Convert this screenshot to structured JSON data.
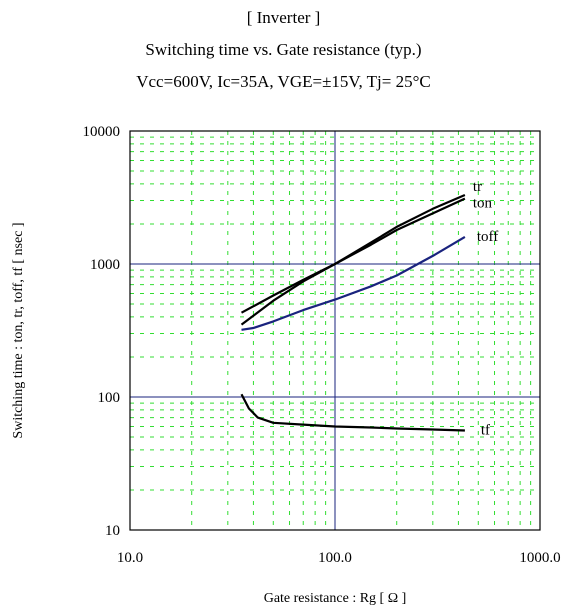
{
  "chart_data": {
    "type": "line",
    "title": "[ Inverter ]",
    "subtitle": "Switching time  vs.  Gate resistance  (typ.)",
    "conditions": "Vcc=600V, Ic=35A, VGE=±15V, Tj= 25°C",
    "xlabel": "Gate resistance  :  Rg  [ Ω ]",
    "ylabel": "Switching time  :  ton, tr, toff, tf  [ nsec ]",
    "xscale": "log",
    "yscale": "log",
    "xlim": [
      10,
      1000
    ],
    "ylim": [
      10,
      10000
    ],
    "xticks": [
      "10.0",
      "100.0",
      "1000.0"
    ],
    "yticks": [
      "10",
      "100",
      "1000",
      "10000"
    ],
    "grid": true,
    "series": [
      {
        "name": "tr",
        "color": "#000000",
        "x": [
          35,
          50,
          70,
          100,
          150,
          200,
          300,
          430
        ],
        "y": [
          350,
          530,
          740,
          1000,
          1450,
          1900,
          2600,
          3300
        ]
      },
      {
        "name": "ton",
        "color": "#000000",
        "x": [
          35,
          50,
          70,
          100,
          150,
          200,
          300,
          430
        ],
        "y": [
          430,
          580,
          760,
          1000,
          1400,
          1800,
          2400,
          3100
        ]
      },
      {
        "name": "toff",
        "color": "#1a237e",
        "x": [
          35,
          40,
          50,
          70,
          100,
          150,
          200,
          300,
          430
        ],
        "y": [
          320,
          330,
          370,
          450,
          540,
          680,
          820,
          1150,
          1600
        ]
      },
      {
        "name": "tf",
        "color": "#000000",
        "x": [
          35,
          38,
          42,
          50,
          70,
          100,
          150,
          200,
          300,
          430
        ],
        "y": [
          105,
          82,
          70,
          64,
          62,
          60,
          59,
          58,
          57,
          56
        ]
      }
    ]
  }
}
